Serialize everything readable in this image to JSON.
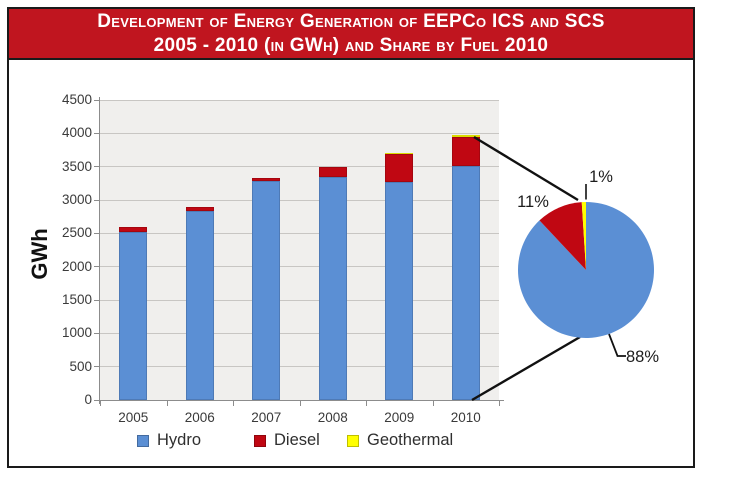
{
  "title": {
    "line1": "Development of Energy Generation of EEPCo ICS and SCS",
    "line2": "2005 - 2010 (in GWh)  and Share by Fuel 2010"
  },
  "colors": {
    "hydro": "#5B8FD4",
    "diesel": "#C00712",
    "geothermal": "#FFFF00",
    "banner": "#C0151F",
    "plot_bg": "#F0EFED",
    "gridline": "#C8C6C3"
  },
  "legend": [
    {
      "label": "Hydro"
    },
    {
      "label": "Diesel"
    },
    {
      "label": "Geothermal"
    }
  ],
  "chart_data": [
    {
      "type": "bar",
      "stacked": true,
      "title": "Development of Energy Generation of EEPCo ICS and SCS 2005 - 2010 (in GWh)",
      "categories": [
        "2005",
        "2006",
        "2007",
        "2008",
        "2009",
        "2010"
      ],
      "series": [
        {
          "name": "Hydro",
          "color": "#5B8FD4",
          "values": [
            2520,
            2830,
            3290,
            3340,
            3270,
            3510
          ]
        },
        {
          "name": "Diesel",
          "color": "#C00712",
          "values": [
            70,
            60,
            40,
            160,
            415,
            430
          ]
        },
        {
          "name": "Geothermal",
          "color": "#FFFF00",
          "values": [
            0,
            0,
            0,
            0,
            25,
            40
          ]
        }
      ],
      "xlabel": "",
      "ylabel": "GWh",
      "ylim": [
        0,
        4500
      ],
      "ytick_step": 500,
      "grid": true,
      "legend_position": "bottom"
    },
    {
      "type": "pie",
      "title": "Share by Fuel 2010",
      "labels": [
        "Hydro",
        "Diesel",
        "Geothermal"
      ],
      "values": [
        88,
        11,
        1
      ],
      "value_labels": [
        "88%",
        "11%",
        "1%"
      ]
    }
  ]
}
